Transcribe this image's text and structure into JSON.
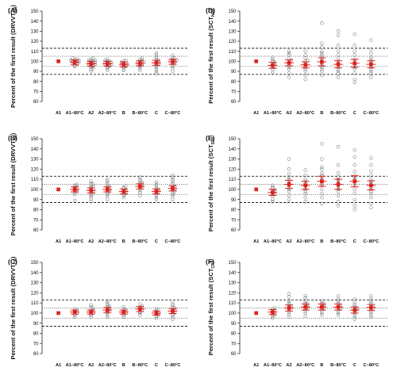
{
  "chart_data": [
    {
      "type": "scatter",
      "panel": "(A)",
      "ylabel": "Percent of the first result",
      "ylabel_main": "DRVVT",
      "ylabel_sub": "NR",
      "categories": [
        "A1",
        "A1−80°C",
        "A2",
        "A2−80°C",
        "B",
        "B−80°C",
        "C",
        "C−80°C"
      ],
      "ylim": [
        60,
        150
      ],
      "yticks": [
        60,
        70,
        80,
        90,
        100,
        110,
        120,
        130,
        140,
        150
      ],
      "reference_dashed": [
        87,
        113
      ],
      "reference_dotted": [
        95,
        105
      ],
      "means": [
        100,
        99,
        97.5,
        97.5,
        97,
        98,
        98.5,
        99.5
      ],
      "error": [
        0,
        2.5,
        2.5,
        2.5,
        2.5,
        2.5,
        2.5,
        2.5
      ],
      "points": [
        [
          100
        ],
        [
          95,
          96,
          97,
          98,
          98,
          99,
          99,
          100,
          100,
          100,
          101,
          101,
          102,
          102,
          103
        ],
        [
          90,
          92,
          93,
          94,
          95,
          96,
          96,
          97,
          97,
          98,
          98,
          99,
          99,
          100,
          100,
          101,
          101,
          102,
          103
        ],
        [
          91,
          93,
          94,
          95,
          96,
          96,
          97,
          97,
          98,
          98,
          99,
          99,
          100,
          100,
          101,
          102
        ],
        [
          91,
          92,
          94,
          95,
          96,
          96,
          97,
          97,
          98,
          98,
          99,
          100,
          101
        ],
        [
          91,
          93,
          95,
          96,
          97,
          97,
          98,
          98,
          99,
          99,
          100,
          101,
          102,
          103
        ],
        [
          88,
          90,
          92,
          94,
          96,
          97,
          98,
          99,
          100,
          101,
          102,
          104,
          106,
          108
        ],
        [
          90,
          93,
          95,
          97,
          98,
          99,
          100,
          100,
          101,
          101,
          102,
          103,
          104,
          106
        ]
      ]
    },
    {
      "type": "scatter",
      "panel": "(B)",
      "ylabel": "Percent of the first result",
      "ylabel_main": "DRVVT",
      "ylabel_sub": "SR",
      "categories": [
        "A1",
        "A1−80°C",
        "A2",
        "A2−80°C",
        "B",
        "B−80°C",
        "C",
        "C−80°C"
      ],
      "ylim": [
        60,
        150
      ],
      "yticks": [
        60,
        70,
        80,
        90,
        100,
        110,
        120,
        130,
        140,
        150
      ],
      "reference_dashed": [
        87,
        113
      ],
      "reference_dotted": [
        95,
        105
      ],
      "means": [
        100,
        100,
        99,
        100,
        98,
        103,
        98,
        101
      ],
      "error": [
        0,
        2.5,
        2.5,
        2.5,
        2.5,
        2.5,
        2.5,
        2.5
      ],
      "points": [
        [
          100
        ],
        [
          89,
          95,
          97,
          98,
          99,
          100,
          101,
          102,
          103,
          104,
          105
        ],
        [
          88,
          91,
          93,
          95,
          96,
          97,
          98,
          99,
          100,
          101,
          102,
          103,
          104,
          105,
          106,
          108
        ],
        [
          90,
          93,
          95,
          97,
          98,
          99,
          100,
          101,
          102,
          103,
          104,
          106,
          108,
          110
        ],
        [
          92,
          94,
          95,
          96,
          97,
          98,
          99,
          100,
          101,
          102,
          103
        ],
        [
          94,
          97,
          99,
          101,
          102,
          103,
          104,
          105,
          106,
          107,
          108,
          110,
          112
        ],
        [
          90,
          92,
          94,
          96,
          97,
          98,
          99,
          100,
          101,
          103,
          105,
          107
        ],
        [
          90,
          93,
          95,
          97,
          98,
          99,
          100,
          101,
          102,
          103,
          104,
          106,
          108,
          110,
          112,
          114
        ]
      ]
    },
    {
      "type": "scatter",
      "panel": "(C)",
      "ylabel": "Percent of the first result",
      "ylabel_main": "DRVVT",
      "ylabel_sub": "CR",
      "categories": [
        "A1",
        "A1−80°C",
        "A2",
        "A2−80°C",
        "B",
        "B−80°C",
        "C",
        "C−80°C"
      ],
      "ylim": [
        60,
        150
      ],
      "yticks": [
        60,
        70,
        80,
        90,
        100,
        110,
        120,
        130,
        140,
        150
      ],
      "reference_dashed": [
        87,
        113
      ],
      "reference_dotted": [
        95,
        105
      ],
      "means": [
        100,
        101,
        101,
        103,
        101,
        104,
        100,
        102
      ],
      "error": [
        0,
        2,
        2,
        2.5,
        2,
        2.5,
        2,
        2.5
      ],
      "points": [
        [
          100
        ],
        [
          96,
          98,
          99,
          100,
          101,
          102,
          103,
          104
        ],
        [
          96,
          98,
          99,
          100,
          101,
          102,
          103,
          104,
          105,
          106,
          108
        ],
        [
          96,
          98,
          100,
          101,
          102,
          103,
          104,
          105,
          106,
          107,
          108,
          110,
          112
        ],
        [
          96,
          98,
          99,
          100,
          101,
          102,
          103,
          104,
          106
        ],
        [
          98,
          100,
          101,
          102,
          103,
          104,
          105,
          106,
          107,
          109
        ],
        [
          95,
          97,
          98,
          99,
          100,
          101,
          102,
          103,
          104
        ],
        [
          94,
          96,
          98,
          99,
          100,
          101,
          102,
          103,
          104,
          105,
          106,
          108,
          110
        ]
      ]
    },
    {
      "type": "scatter",
      "panel": "(D)",
      "ylabel": "Percent of the first result",
      "ylabel_main": "SCT",
      "ylabel_sub": "NR",
      "categories": [
        "A1",
        "A1−80°C",
        "A2",
        "A2−80°C",
        "B",
        "B−80°C",
        "C",
        "C−80°C"
      ],
      "ylim": [
        60,
        150
      ],
      "yticks": [
        60,
        70,
        80,
        90,
        100,
        110,
        120,
        130,
        140,
        150
      ],
      "reference_dashed": [
        87,
        113
      ],
      "reference_dotted": [
        95,
        105
      ],
      "means": [
        100,
        96,
        98.5,
        96.5,
        99.5,
        97,
        98,
        97
      ],
      "error": [
        0,
        3,
        3,
        3,
        4,
        3.5,
        4,
        3.5
      ],
      "points": [
        [
          100
        ],
        [
          89,
          92,
          94,
          95,
          96,
          97,
          98,
          99,
          100,
          102,
          104
        ],
        [
          84,
          88,
          92,
          94,
          96,
          98,
          100,
          101,
          103,
          106,
          108,
          110
        ],
        [
          82,
          86,
          90,
          92,
          94,
          96,
          98,
          100,
          101,
          103,
          106,
          110
        ],
        [
          86,
          90,
          92,
          94,
          96,
          98,
          100,
          102,
          104,
          106,
          108,
          110,
          114,
          118,
          138
        ],
        [
          84,
          88,
          90,
          92,
          94,
          96,
          98,
          100,
          103,
          106,
          110,
          116,
          126,
          130
        ],
        [
          79,
          82,
          88,
          92,
          94,
          96,
          98,
          100,
          102,
          106,
          110,
          116,
          127
        ],
        [
          84,
          88,
          90,
          92,
          94,
          96,
          98,
          100,
          102,
          104,
          108,
          112,
          121
        ]
      ]
    },
    {
      "type": "scatter",
      "panel": "(E)",
      "ylabel": "Percent of the first result",
      "ylabel_main": "SCT",
      "ylabel_sub": "SR",
      "categories": [
        "A1",
        "A1−80°C",
        "A2",
        "A2−80°C",
        "B",
        "B−80°C",
        "C",
        "C−80°C"
      ],
      "ylim": [
        60,
        150
      ],
      "yticks": [
        60,
        70,
        80,
        90,
        100,
        110,
        120,
        130,
        140,
        150
      ],
      "reference_dashed": [
        87,
        113
      ],
      "reference_dotted": [
        95,
        105
      ],
      "means": [
        100,
        97,
        105,
        104,
        108,
        105,
        108,
        104
      ],
      "error": [
        0,
        3,
        4,
        4,
        5,
        5,
        5.5,
        4.5
      ],
      "points": [
        [
          100
        ],
        [
          88,
          90,
          93,
          95,
          96,
          97,
          98,
          99,
          100,
          101,
          102,
          104
        ],
        [
          90,
          94,
          98,
          100,
          102,
          104,
          106,
          108,
          110,
          112,
          115,
          120,
          130
        ],
        [
          88,
          92,
          96,
          98,
          100,
          102,
          104,
          106,
          108,
          110,
          114,
          119
        ],
        [
          86,
          92,
          96,
          100,
          104,
          106,
          108,
          110,
          112,
          114,
          116,
          120,
          122,
          130,
          145
        ],
        [
          84,
          88,
          94,
          98,
          100,
          102,
          104,
          106,
          108,
          110,
          112,
          116,
          124,
          142
        ],
        [
          80,
          84,
          90,
          96,
          100,
          104,
          106,
          108,
          110,
          112,
          114,
          118,
          124,
          132,
          139
        ],
        [
          82,
          86,
          92,
          96,
          98,
          100,
          102,
          104,
          106,
          108,
          110,
          114,
          118,
          124,
          131
        ]
      ]
    },
    {
      "type": "scatter",
      "panel": "(F)",
      "ylabel": "Percent of the first result",
      "ylabel_main": "SCT",
      "ylabel_sub": "CR",
      "categories": [
        "A1",
        "A1−80°C",
        "A2",
        "A2−80°C",
        "B",
        "B−80°C",
        "C",
        "C−80°C"
      ],
      "ylim": [
        60,
        150
      ],
      "yticks": [
        60,
        70,
        80,
        90,
        100,
        110,
        120,
        130,
        140,
        150
      ],
      "reference_dashed": [
        87,
        113
      ],
      "reference_dotted": [
        95,
        105
      ],
      "means": [
        100,
        101,
        105,
        106,
        106,
        106,
        103,
        105.5
      ],
      "error": [
        0,
        2.5,
        3,
        3,
        3,
        3,
        3,
        3
      ],
      "points": [
        [
          100
        ],
        [
          95,
          97,
          98,
          99,
          100,
          101,
          102,
          103,
          104,
          105
        ],
        [
          96,
          99,
          101,
          103,
          104,
          105,
          106,
          107,
          108,
          110,
          112,
          116,
          119
        ],
        [
          97,
          100,
          102,
          104,
          105,
          106,
          107,
          108,
          109,
          110,
          112,
          115,
          117
        ],
        [
          98,
          100,
          102,
          104,
          105,
          106,
          107,
          108,
          109,
          110,
          112
        ],
        [
          98,
          100,
          102,
          104,
          105,
          106,
          107,
          108,
          110,
          112,
          114,
          117
        ],
        [
          94,
          96,
          98,
          100,
          102,
          103,
          104,
          105,
          106,
          108,
          110,
          114
        ],
        [
          96,
          98,
          100,
          102,
          104,
          105,
          106,
          107,
          108,
          110,
          112,
          114,
          117
        ]
      ]
    }
  ]
}
